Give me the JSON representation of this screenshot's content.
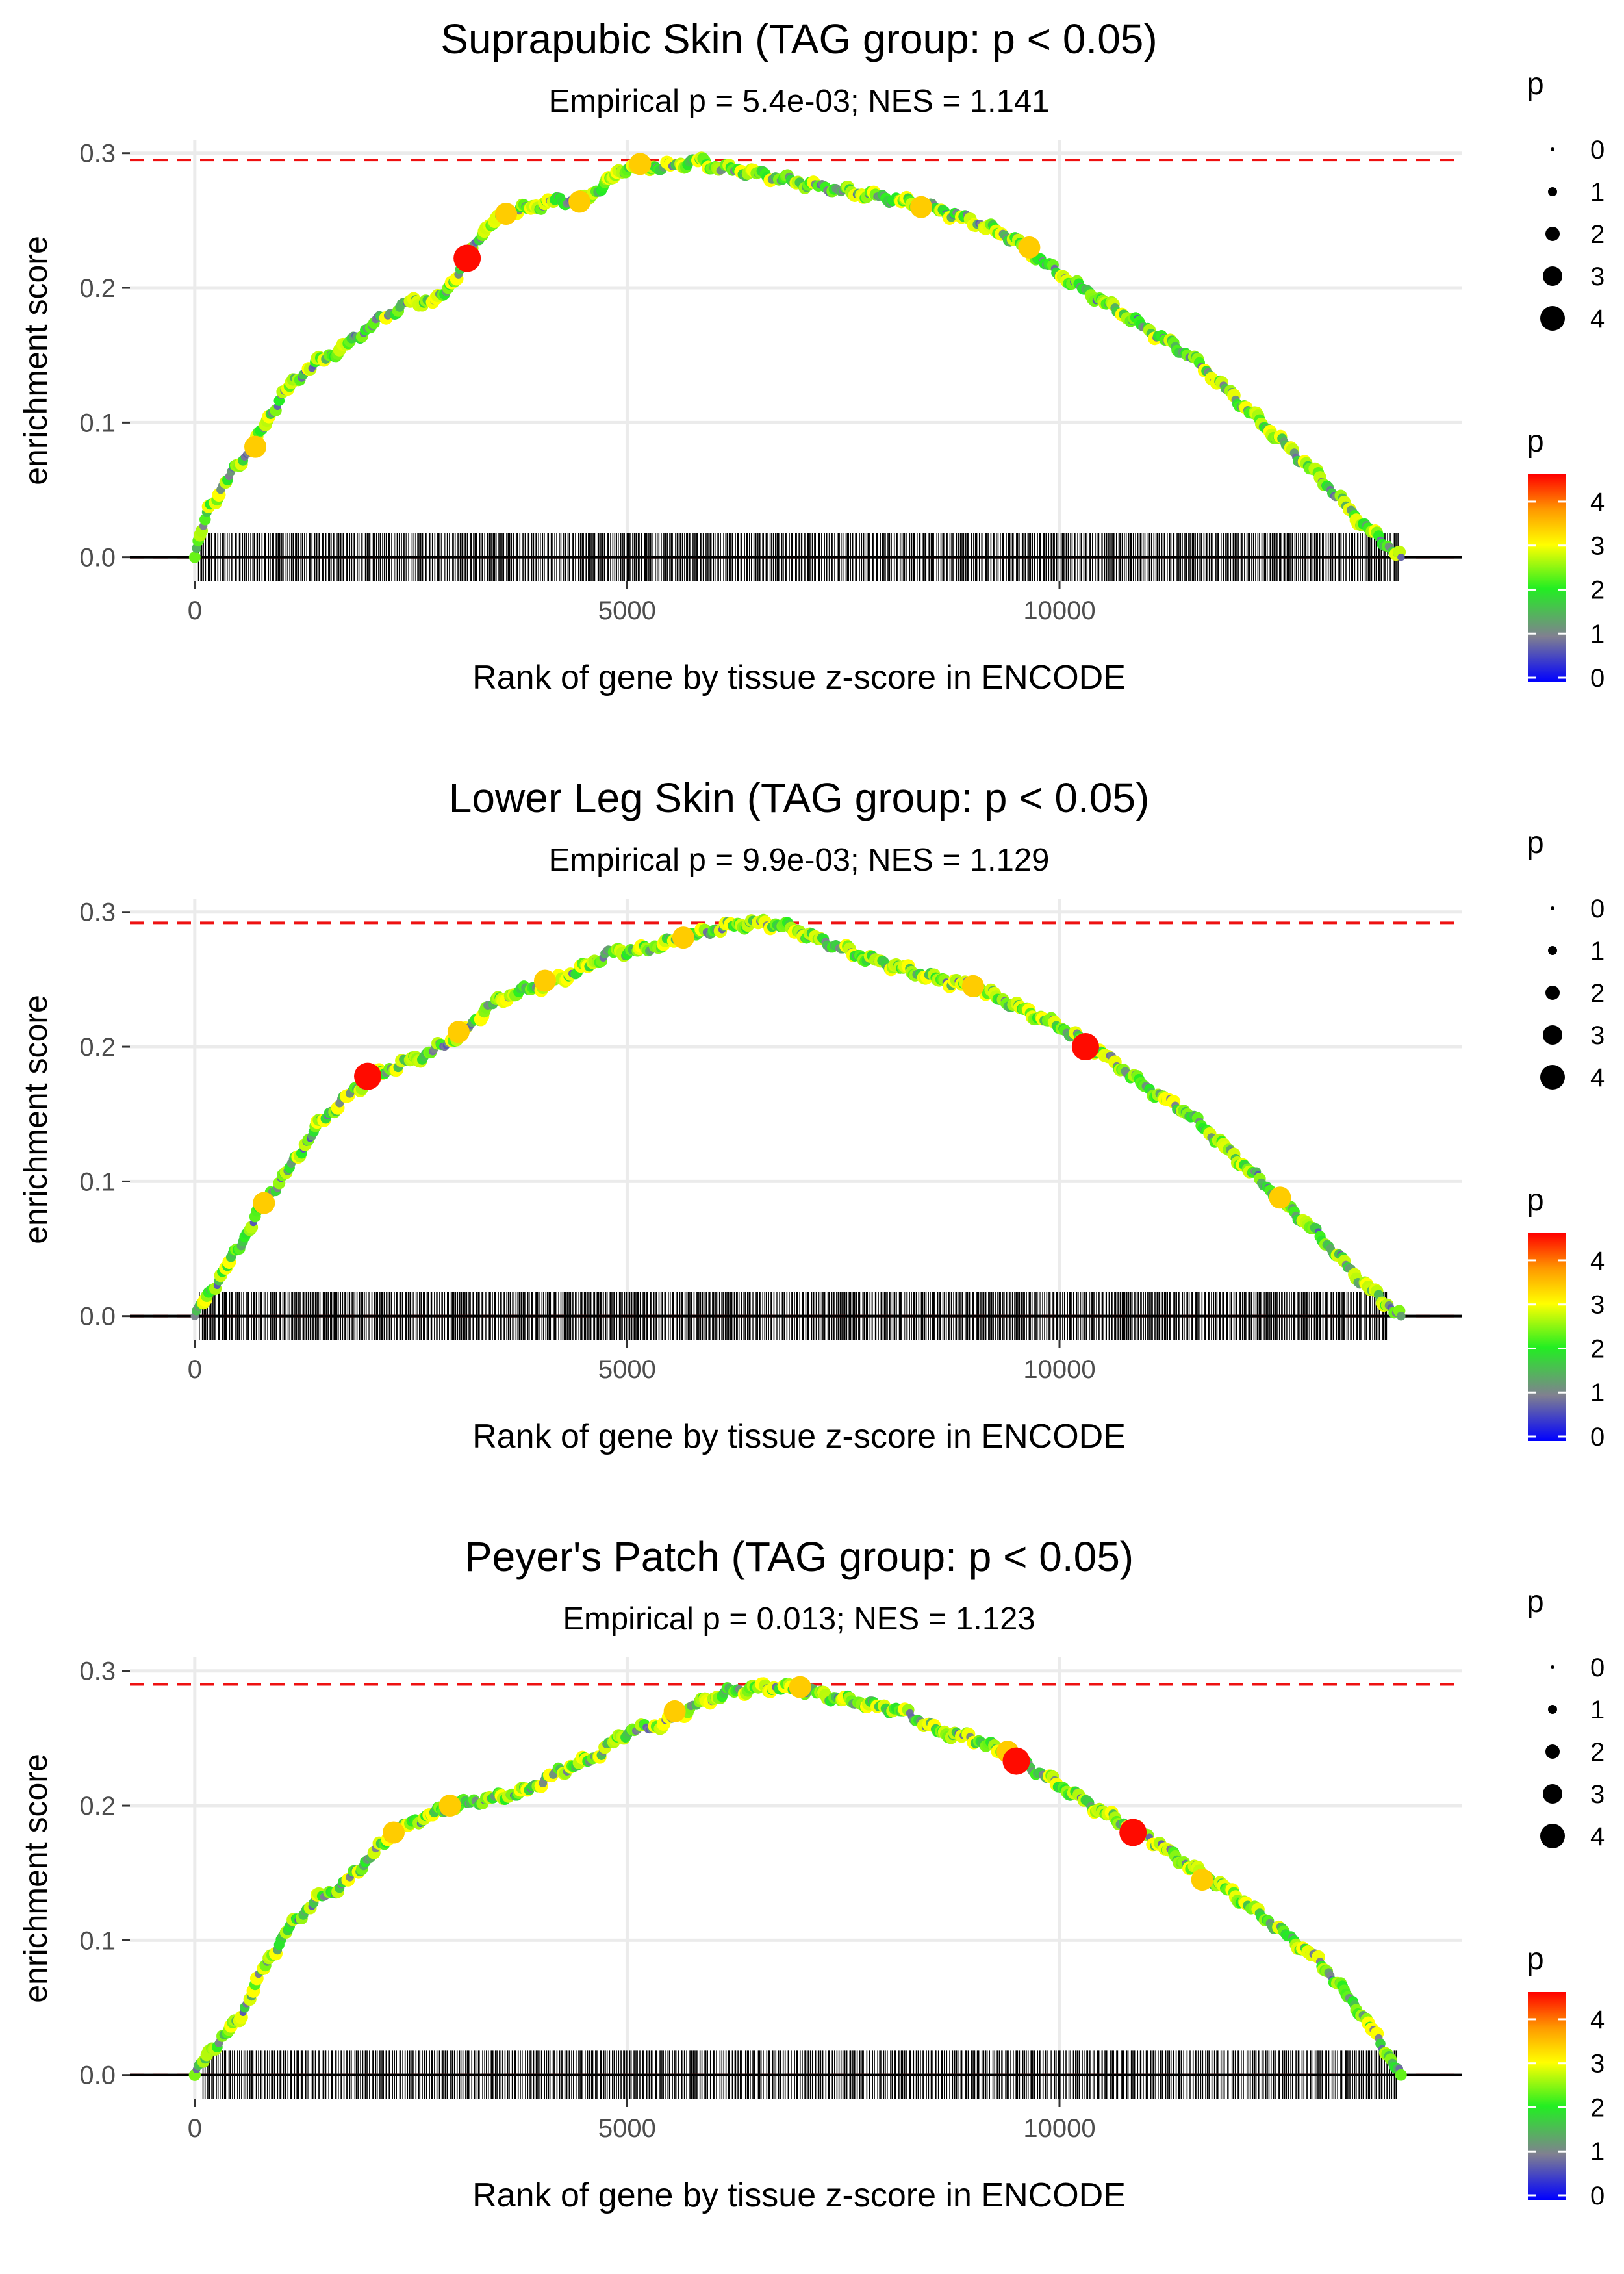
{
  "chart_data": [
    {
      "type": "line",
      "title": "Suprapubic Skin (TAG group: p < 0.05)",
      "subtitle": "Empirical p = 5.4e-03; NES = 1.141",
      "xlabel": "Rank of gene by tissue z-score in ENCODE",
      "ylabel": "enrichment score",
      "xlim": [
        -750,
        14650
      ],
      "ylim": [
        -0.018,
        0.31
      ],
      "x_ticks": [
        0,
        5000,
        10000
      ],
      "x_tick_labels": [
        "0",
        "5000",
        "10000"
      ],
      "y_ticks": [
        0.0,
        0.1,
        0.2,
        0.3
      ],
      "y_tick_labels": [
        "0.0",
        "0.1",
        "0.2",
        "0.3"
      ],
      "max_es": 0.295,
      "curve": {
        "x": [
          0,
          150,
          400,
          700,
          1000,
          1300,
          1700,
          2100,
          2500,
          2800,
          3100,
          3300,
          3600,
          3900,
          4200,
          4500,
          4800,
          5000,
          5200,
          5500,
          5800,
          6000,
          6500,
          7000,
          7500,
          8000,
          8500,
          9000,
          9500,
          10000,
          10500,
          11000,
          11500,
          12000,
          12500,
          13000,
          13500,
          13950
        ],
        "y": [
          0,
          0.035,
          0.06,
          0.085,
          0.12,
          0.14,
          0.155,
          0.175,
          0.19,
          0.19,
          0.215,
          0.24,
          0.255,
          0.26,
          0.265,
          0.265,
          0.28,
          0.29,
          0.29,
          0.29,
          0.295,
          0.29,
          0.285,
          0.278,
          0.272,
          0.267,
          0.26,
          0.25,
          0.235,
          0.21,
          0.19,
          0.17,
          0.15,
          0.12,
          0.09,
          0.06,
          0.025,
          0
        ]
      },
      "highlights": [
        {
          "x": 700,
          "y": 0.082,
          "p": 3
        },
        {
          "x": 3150,
          "y": 0.222,
          "p": 4
        },
        {
          "x": 3600,
          "y": 0.255,
          "p": 3
        },
        {
          "x": 4450,
          "y": 0.264,
          "p": 3
        },
        {
          "x": 5150,
          "y": 0.292,
          "p": 3
        },
        {
          "x": 8400,
          "y": 0.26,
          "p": 3
        },
        {
          "x": 9650,
          "y": 0.23,
          "p": 3
        }
      ],
      "gene_ranks": {
        "start": 30,
        "end": 13920,
        "count": 620,
        "seed": 11
      },
      "size_legend": {
        "title": "p",
        "labels": [
          "0",
          "1",
          "2",
          "3",
          "4"
        ]
      },
      "color_legend": {
        "title": "p",
        "labels": [
          "0",
          "1",
          "2",
          "3",
          "4"
        ]
      }
    },
    {
      "type": "line",
      "title": "Lower Leg Skin (TAG group: p < 0.05)",
      "subtitle": "Empirical p = 9.9e-03; NES = 1.129",
      "xlabel": "Rank of gene by tissue z-score in ENCODE",
      "ylabel": "enrichment score",
      "xlim": [
        -750,
        14650
      ],
      "ylim": [
        -0.018,
        0.31
      ],
      "x_ticks": [
        0,
        5000,
        10000
      ],
      "x_tick_labels": [
        "0",
        "5000",
        "10000"
      ],
      "y_ticks": [
        0.0,
        0.1,
        0.2,
        0.3
      ],
      "y_tick_labels": [
        "0.0",
        "0.1",
        "0.2",
        "0.3"
      ],
      "max_es": 0.292,
      "curve": {
        "x": [
          0,
          200,
          500,
          800,
          1100,
          1400,
          1700,
          2000,
          2300,
          2700,
          3100,
          3400,
          3700,
          4000,
          4400,
          4800,
          5200,
          5600,
          5900,
          6200,
          6500,
          6800,
          7000,
          7400,
          7800,
          8200,
          8600,
          9000,
          9500,
          10000,
          10500,
          11000,
          11500,
          12000,
          12500,
          13000,
          13500,
          13950
        ],
        "y": [
          0,
          0.02,
          0.05,
          0.085,
          0.11,
          0.14,
          0.16,
          0.175,
          0.185,
          0.195,
          0.21,
          0.23,
          0.24,
          0.245,
          0.255,
          0.27,
          0.272,
          0.28,
          0.285,
          0.29,
          0.292,
          0.29,
          0.285,
          0.275,
          0.265,
          0.258,
          0.25,
          0.245,
          0.23,
          0.215,
          0.195,
          0.17,
          0.15,
          0.12,
          0.09,
          0.06,
          0.025,
          0
        ]
      },
      "highlights": [
        {
          "x": 800,
          "y": 0.084,
          "p": 3
        },
        {
          "x": 2000,
          "y": 0.178,
          "p": 4
        },
        {
          "x": 3050,
          "y": 0.211,
          "p": 3
        },
        {
          "x": 4050,
          "y": 0.249,
          "p": 3
        },
        {
          "x": 5650,
          "y": 0.281,
          "p": 3
        },
        {
          "x": 9000,
          "y": 0.245,
          "p": 3
        },
        {
          "x": 10300,
          "y": 0.2,
          "p": 4
        },
        {
          "x": 12550,
          "y": 0.088,
          "p": 3
        }
      ],
      "gene_ranks": {
        "start": 50,
        "end": 13800,
        "count": 650,
        "seed": 23
      },
      "size_legend": {
        "title": "p",
        "labels": [
          "0",
          "1",
          "2",
          "3",
          "4"
        ]
      },
      "color_legend": {
        "title": "p",
        "labels": [
          "0",
          "1",
          "2",
          "3",
          "4"
        ]
      }
    },
    {
      "type": "line",
      "title": "Peyer's Patch (TAG group: p < 0.05)",
      "subtitle": "Empirical p = 0.013; NES = 1.123",
      "xlabel": "Rank of gene by tissue z-score in ENCODE",
      "ylabel": "enrichment score",
      "xlim": [
        -750,
        14650
      ],
      "ylim": [
        -0.018,
        0.31
      ],
      "x_ticks": [
        0,
        5000,
        10000
      ],
      "x_tick_labels": [
        "0",
        "5000",
        "10000"
      ],
      "y_ticks": [
        0.0,
        0.1,
        0.2,
        0.3
      ],
      "y_tick_labels": [
        "0.0",
        "0.1",
        "0.2",
        "0.3"
      ],
      "max_es": 0.29,
      "curve": {
        "x": [
          0,
          200,
          500,
          800,
          1100,
          1400,
          1700,
          2000,
          2300,
          2600,
          3000,
          3400,
          3800,
          4200,
          4600,
          5000,
          5400,
          5800,
          6200,
          6600,
          7000,
          7400,
          7800,
          8200,
          8600,
          9000,
          9500,
          10000,
          10500,
          11000,
          11500,
          12000,
          12500,
          13000,
          13500,
          13950
        ],
        "y": [
          0,
          0.02,
          0.04,
          0.08,
          0.11,
          0.13,
          0.14,
          0.16,
          0.18,
          0.19,
          0.2,
          0.205,
          0.21,
          0.225,
          0.235,
          0.255,
          0.26,
          0.275,
          0.285,
          0.288,
          0.287,
          0.28,
          0.275,
          0.27,
          0.255,
          0.25,
          0.235,
          0.215,
          0.195,
          0.178,
          0.155,
          0.135,
          0.11,
          0.085,
          0.045,
          0
        ]
      },
      "highlights": [
        {
          "x": 2300,
          "y": 0.18,
          "p": 3
        },
        {
          "x": 2950,
          "y": 0.2,
          "p": 3
        },
        {
          "x": 5550,
          "y": 0.27,
          "p": 3
        },
        {
          "x": 7000,
          "y": 0.288,
          "p": 3
        },
        {
          "x": 9400,
          "y": 0.24,
          "p": 3
        },
        {
          "x": 9500,
          "y": 0.233,
          "p": 4
        },
        {
          "x": 10850,
          "y": 0.18,
          "p": 4
        },
        {
          "x": 11650,
          "y": 0.145,
          "p": 3
        }
      ],
      "gene_ranks": {
        "start": 80,
        "end": 13900,
        "count": 560,
        "seed": 37
      },
      "size_legend": {
        "title": "p",
        "labels": [
          "0",
          "1",
          "2",
          "3",
          "4"
        ]
      },
      "color_legend": {
        "title": "p",
        "labels": [
          "0",
          "1",
          "2",
          "3",
          "4"
        ]
      }
    }
  ],
  "colors": {
    "dashed_max_line": "#ee1111",
    "zero_line": "#000000",
    "gridline": "#ebebeb",
    "gradient": [
      "#0000ff",
      "#808090",
      "#22ee22",
      "#ffff00",
      "#ff9900",
      "#ff0000"
    ]
  }
}
